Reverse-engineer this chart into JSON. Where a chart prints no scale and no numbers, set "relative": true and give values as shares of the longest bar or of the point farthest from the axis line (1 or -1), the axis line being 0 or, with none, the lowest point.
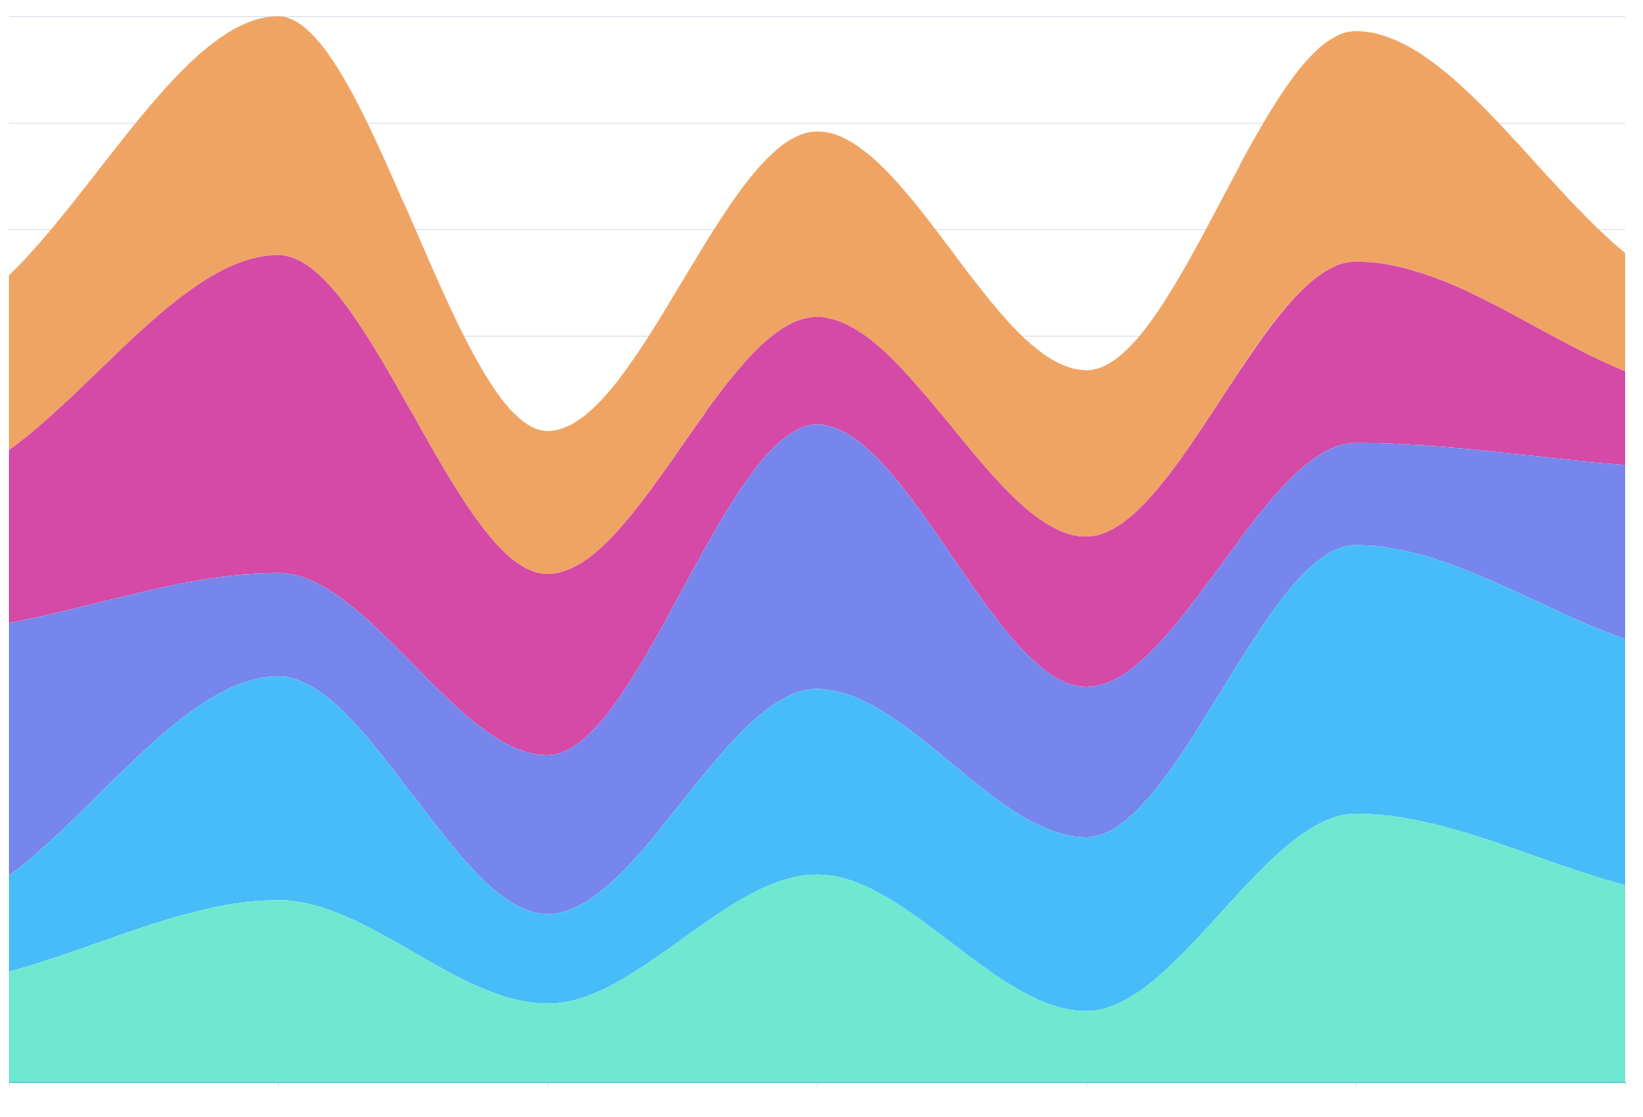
{
  "chart_data": {
    "type": "area",
    "relative": true,
    "stacked": true,
    "grid": "y",
    "legend": false,
    "categories": [
      null,
      null,
      null,
      null,
      null,
      null,
      null
    ],
    "series": [
      {
        "color": "#6ee8d0",
        "values": [
          0.104,
          0.171,
          0.074,
          0.195,
          0.067,
          0.252,
          0.185
        ]
      },
      {
        "color": "#48bcf8",
        "values": [
          0.09,
          0.21,
          0.084,
          0.174,
          0.163,
          0.252,
          0.231
        ]
      },
      {
        "color": "#7686ec",
        "values": [
          0.237,
          0.097,
          0.149,
          0.248,
          0.141,
          0.096,
          0.163
        ]
      },
      {
        "color": "#d44aa6",
        "values": [
          0.162,
          0.298,
          0.17,
          0.101,
          0.141,
          0.17,
          0.088
        ]
      },
      {
        "color": "#f0a464",
        "values": [
          0.164,
          0.224,
          0.134,
          0.174,
          0.156,
          0.216,
          0.111
        ]
      }
    ]
  }
}
